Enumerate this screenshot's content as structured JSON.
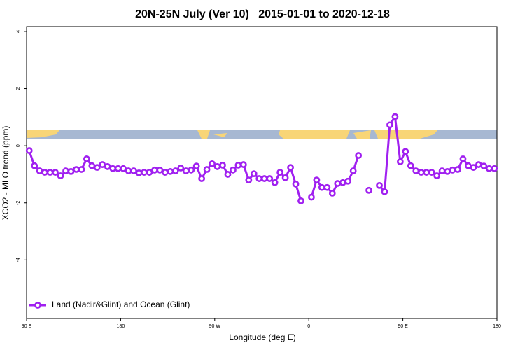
{
  "chart_data": {
    "type": "line",
    "title": "20N-25N July (Ver 10)   2015-01-01 to 2020-12-18",
    "x_label": "Longitude (deg E)",
    "y_label": "XCO2 - MLO trend (ppm)",
    "x": [
      92.5,
      97.5,
      102.5,
      107.5,
      112.5,
      117.5,
      122.5,
      127.5,
      132.5,
      137.5,
      142.5,
      147.5,
      152.5,
      157.5,
      162.5,
      167.5,
      172.5,
      177.5,
      182.5,
      187.5,
      192.5,
      197.5,
      202.5,
      207.5,
      212.5,
      217.5,
      222.5,
      227.5,
      232.5,
      237.5,
      242.5,
      247.5,
      252.5,
      257.5,
      262.5,
      267.5,
      272.5,
      277.5,
      282.5,
      287.5,
      292.5,
      297.5,
      302.5,
      307.5,
      312.5,
      317.5,
      322.5,
      327.5,
      332.5,
      337.5,
      342.5,
      347.5,
      352.5,
      357.5,
      362.5,
      367.5,
      372.5,
      377.5,
      382.5,
      387.5,
      392.5,
      397.5,
      402.5,
      407.5,
      412.5,
      417.5,
      422.5,
      427.5,
      432.5,
      437.5,
      442.5,
      447.5,
      452.5,
      457.5,
      462.5,
      467.5,
      472.5,
      477.5,
      482.5,
      487.5,
      492.5,
      497.5,
      502.5,
      507.5,
      512.5,
      517.5,
      522.5,
      527.5,
      532.5,
      537.5
    ],
    "series": [
      {
        "name": "Land (Nadir&Glint) and Ocean (Glint)",
        "color": "#a020f0",
        "values": [
          -0.17,
          -0.7,
          -0.88,
          -0.93,
          -0.93,
          -0.93,
          -1.05,
          -0.88,
          -0.9,
          -0.83,
          -0.83,
          -0.46,
          -0.7,
          -0.76,
          -0.66,
          -0.73,
          -0.8,
          -0.8,
          -0.8,
          -0.88,
          -0.88,
          -0.95,
          -0.93,
          -0.93,
          -0.85,
          -0.85,
          -0.93,
          -0.9,
          -0.88,
          -0.78,
          -0.88,
          -0.85,
          -0.71,
          -1.15,
          -0.83,
          -0.63,
          -0.73,
          -0.68,
          -1.0,
          -0.85,
          -0.68,
          -0.66,
          -1.2,
          -0.98,
          -1.15,
          -1.15,
          -1.15,
          -1.29,
          -0.93,
          -1.12,
          -0.76,
          -1.34,
          -1.93,
          null,
          -1.8,
          -1.2,
          -1.46,
          -1.46,
          -1.66,
          -1.32,
          -1.29,
          -1.24,
          -0.88,
          -0.34,
          null,
          -1.56,
          null,
          -1.39,
          -1.61,
          0.73,
          1.02,
          -0.56,
          -0.2,
          -0.7,
          -0.88,
          -0.93,
          -0.93,
          -0.93,
          -1.05,
          -0.88,
          -0.9,
          -0.85,
          -0.83,
          -0.46,
          -0.7,
          -0.76,
          -0.66,
          -0.71,
          -0.8,
          -0.8
        ]
      }
    ],
    "xlim": [
      90,
      540
    ],
    "xticks": [
      {
        "value": 90,
        "label": "90 E"
      },
      180,
      {
        "value": 270,
        "label": "90 W"
      },
      {
        "value": 360,
        "label": "0"
      },
      {
        "value": 450,
        "label": "90 E"
      },
      {
        "value": 540,
        "label": "180"
      }
    ],
    "ylim": [
      -6.05,
      4.17
    ],
    "yticks": [
      -4,
      -2,
      0,
      2,
      4
    ],
    "legend": "bottom-left"
  }
}
